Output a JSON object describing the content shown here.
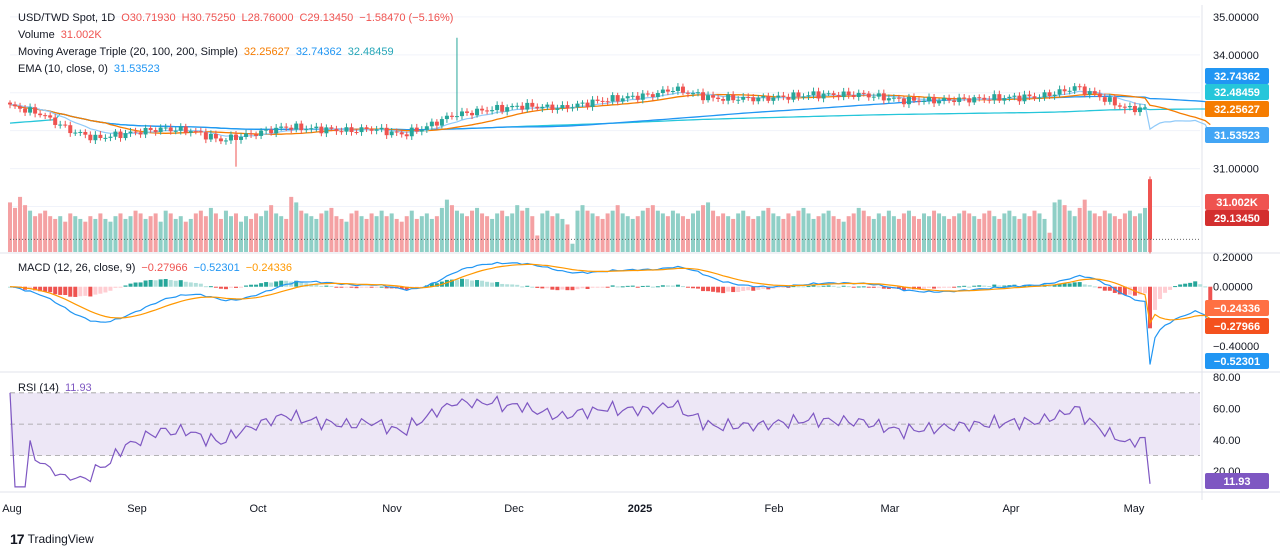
{
  "colors": {
    "up": "#26a69a",
    "down": "#ef5350",
    "vol_up": "#8fcfc6",
    "vol_down": "#f4a1a3",
    "ma20": "#f57c00",
    "ma100": "#2196f3",
    "ma200": "#26c6da",
    "ema10": "#42a5f5",
    "macd": "#2196f3",
    "signal": "#ff9800",
    "rsi": "#7e57c2",
    "rsi_band": "#ede7f6",
    "grid": "#f0f3fa",
    "text": "#131722"
  },
  "main_legend": {
    "symbol": "USD/TWD Spot, 1D",
    "o": "O30.71930",
    "h": "H30.75250",
    "l": "L28.76000",
    "c": "C29.13450",
    "chg": "−1.58470 (−5.16%)",
    "volume_label": "Volume",
    "volume_value": "31.002K",
    "ma_label": "Moving Average Triple (20, 100, 200, Simple)",
    "ma1": "32.25627",
    "ma2": "32.74362",
    "ma3": "32.48459",
    "ema_label": "EMA (10, close, 0)",
    "ema_value": "31.53523"
  },
  "macd_legend": {
    "label": "MACD (12, 26, close, 9)",
    "hist": "−0.27966",
    "macd": "−0.52301",
    "signal": "−0.24336"
  },
  "rsi_legend": {
    "label": "RSI (14)",
    "value": "11.93"
  },
  "footer": {
    "logo": "17",
    "brand": "TradingView"
  },
  "chart_data": {
    "type": "candlestick",
    "price_axis": {
      "ticks": [
        "35.00000",
        "34.00000",
        "33.00000",
        "32.00000",
        "31.00000",
        "30.00000"
      ],
      "ylim": [
        28.8,
        35.05
      ]
    },
    "macd_axis": {
      "ticks": [
        "0.20000",
        "0.00000",
        "-0.40000"
      ],
      "ylim": [
        -0.56,
        0.22
      ]
    },
    "rsi_axis": {
      "ticks": [
        "80.00",
        "60.00",
        "40.00",
        "20.00"
      ],
      "ylim": [
        8,
        82
      ],
      "bands": [
        30,
        70
      ],
      "mid": 50
    },
    "x_labels": [
      "Aug",
      "Sep",
      "Oct",
      "Nov",
      "Dec",
      "2025",
      "Feb",
      "Mar",
      "Apr",
      "May"
    ],
    "price_badges": [
      {
        "text": "32.74362",
        "color": "#2196f3"
      },
      {
        "text": "32.48459",
        "color": "#26c6da"
      },
      {
        "text": "32.25627",
        "color": "#f57c00"
      },
      {
        "text": "31.53523",
        "color": "#42a5f5"
      },
      {
        "text": "31.002K",
        "color": "#ef5350"
      },
      {
        "text": "29.13450",
        "color": "#d32f2f"
      }
    ],
    "macd_badges": [
      {
        "text": "-0.24336",
        "color": "#ff7043"
      },
      {
        "text": "-0.27966",
        "color": "#f4511e"
      },
      {
        "text": "-0.52301",
        "color": "#2196f3"
      }
    ],
    "rsi_badge": {
      "text": "11.93",
      "color": "#7e57c2"
    },
    "close_anchors": [
      [
        0,
        32.65
      ],
      [
        6,
        32.45
      ],
      [
        12,
        32.0
      ],
      [
        17,
        31.8
      ],
      [
        22,
        31.9
      ],
      [
        30,
        32.05
      ],
      [
        36,
        32.0
      ],
      [
        42,
        31.75
      ],
      [
        48,
        31.9
      ],
      [
        55,
        32.1
      ],
      [
        60,
        32.05
      ],
      [
        68,
        32.0
      ],
      [
        72,
        32.05
      ],
      [
        78,
        31.9
      ],
      [
        82,
        32.05
      ],
      [
        88,
        32.4
      ],
      [
        95,
        32.55
      ],
      [
        102,
        32.65
      ],
      [
        110,
        32.6
      ],
      [
        118,
        32.8
      ],
      [
        128,
        32.95
      ],
      [
        132,
        33.1
      ],
      [
        140,
        32.85
      ],
      [
        150,
        32.85
      ],
      [
        160,
        32.95
      ],
      [
        170,
        32.95
      ],
      [
        178,
        32.8
      ],
      [
        185,
        32.8
      ],
      [
        195,
        32.85
      ],
      [
        205,
        32.9
      ],
      [
        210,
        33.05
      ],
      [
        212,
        33.15
      ],
      [
        216,
        32.95
      ],
      [
        222,
        32.6
      ],
      [
        228,
        32.55
      ],
      [
        231,
        32.3
      ],
      [
        236,
        32.25
      ],
      [
        238,
        31.9
      ],
      [
        239,
        30.7
      ],
      [
        240,
        29.1345
      ]
    ],
    "volume_k": [
      36,
      32,
      40,
      34,
      30,
      26,
      28,
      30,
      26,
      24,
      26,
      22,
      28,
      26,
      24,
      22,
      26,
      24,
      28,
      24,
      22,
      26,
      28,
      24,
      26,
      30,
      28,
      24,
      26,
      28,
      22,
      30,
      28,
      24,
      26,
      22,
      24,
      28,
      30,
      26,
      32,
      28,
      24,
      30,
      26,
      28,
      22,
      26,
      24,
      28,
      26,
      30,
      34,
      28,
      26,
      24,
      40,
      36,
      30,
      28,
      26,
      24,
      28,
      30,
      32,
      26,
      24,
      22,
      28,
      30,
      26,
      24,
      28,
      26,
      30,
      26,
      28,
      24,
      22,
      26,
      30,
      24,
      26,
      28,
      24,
      26,
      32,
      38,
      34,
      30,
      28,
      26,
      30,
      32,
      28,
      26,
      24,
      28,
      30,
      26,
      28,
      34,
      30,
      32,
      26,
      12,
      28,
      30,
      26,
      28,
      24,
      20,
      6,
      30,
      34,
      30,
      28,
      26,
      24,
      28,
      30,
      34,
      28,
      26,
      24,
      26,
      30,
      32,
      34,
      30,
      28,
      26,
      30,
      28,
      26,
      24,
      28,
      30,
      34,
      36,
      30,
      26,
      28,
      26,
      24,
      28,
      30,
      26,
      24,
      26,
      30,
      32,
      28,
      26,
      24,
      28,
      26,
      30,
      32,
      28,
      24,
      26,
      28,
      30,
      26,
      24,
      22,
      26,
      28,
      32,
      30,
      26,
      24,
      28,
      26,
      30,
      26,
      24,
      28,
      30,
      26,
      24,
      28,
      26,
      30,
      28,
      26,
      24,
      26,
      28,
      30,
      28,
      26,
      24,
      28,
      30,
      26,
      24,
      28,
      30,
      26,
      24,
      28,
      26,
      30,
      28,
      24,
      14,
      36,
      38,
      34,
      30,
      26,
      32,
      38,
      30,
      28,
      26,
      30,
      28,
      26,
      24,
      28,
      30,
      26,
      28,
      32,
      31
    ]
  }
}
